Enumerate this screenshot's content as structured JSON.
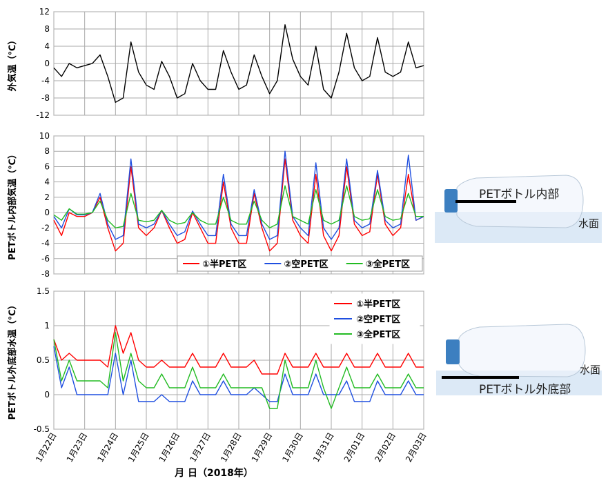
{
  "chart_data": {
    "type": "line",
    "xlabel": "月 日（2018年）",
    "x": [
      0,
      0.25,
      0.5,
      0.75,
      1,
      1.25,
      1.5,
      1.75,
      2,
      2.25,
      2.5,
      2.75,
      3,
      3.25,
      3.5,
      3.75,
      4,
      4.25,
      4.5,
      4.75,
      5,
      5.25,
      5.5,
      5.75,
      6,
      6.25,
      6.5,
      6.75,
      7,
      7.25,
      7.5,
      7.75,
      8,
      8.25,
      8.5,
      8.75,
      9,
      9.25,
      9.5,
      9.75,
      10,
      10.25,
      10.5,
      10.75,
      11,
      11.25,
      11.5,
      11.75,
      12
    ],
    "xlim": [
      0,
      12
    ],
    "xticks": [
      {
        "value": 0,
        "label": "1月22日"
      },
      {
        "value": 1,
        "label": "1月23日"
      },
      {
        "value": 2,
        "label": "1月24日"
      },
      {
        "value": 3,
        "label": "1月25日"
      },
      {
        "value": 4,
        "label": "1月26日"
      },
      {
        "value": 5,
        "label": "1月27日"
      },
      {
        "value": 6,
        "label": "1月28日"
      },
      {
        "value": 7,
        "label": "1月29日"
      },
      {
        "value": 8,
        "label": "1月30日"
      },
      {
        "value": 9,
        "label": "1月31日"
      },
      {
        "value": 10,
        "label": "2月01日"
      },
      {
        "value": 11,
        "label": "2月02日"
      },
      {
        "value": 12,
        "label": "2月03日"
      }
    ],
    "grid": true,
    "panels": [
      {
        "ylabel": "外気温（℃）",
        "ylabel_color": "#000000",
        "ylim": [
          -12,
          12
        ],
        "yticks": [
          -12,
          -8,
          -4,
          0,
          4,
          8,
          12
        ],
        "legend": null,
        "series": [
          {
            "name": null,
            "color": "#000000",
            "values": [
              -1,
              -3,
              0,
              -1,
              -0.5,
              0,
              2,
              -3,
              -9,
              -8,
              5,
              -2,
              -5,
              -6,
              0.5,
              -3,
              -8,
              -7,
              0,
              -4,
              -6,
              -6,
              3,
              -2,
              -6,
              -5,
              2,
              -3,
              -7,
              -4,
              9,
              1,
              -3,
              -5,
              4,
              -6,
              -8,
              -2,
              7,
              -1,
              -4,
              -3,
              6,
              -2,
              -3,
              -2,
              5,
              -1,
              -0.5
            ]
          }
        ]
      },
      {
        "ylabel": "PETボトル内部気温（℃）",
        "ylabel_color": "#000000",
        "ylim": [
          -8,
          10
        ],
        "yticks": [
          -8,
          -6,
          -4,
          -2,
          0,
          2,
          4,
          6,
          8,
          10
        ],
        "legend": "lower right",
        "series": [
          {
            "name": "①半PET区",
            "color": "#ff0000",
            "values": [
              -1,
              -3,
              0,
              -0.5,
              -0.5,
              0,
              2,
              -2,
              -5,
              -4,
              6,
              -2,
              -3,
              -2,
              0.3,
              -2,
              -4,
              -3.5,
              0,
              -2,
              -4,
              -4,
              4,
              -2,
              -4,
              -4,
              2.5,
              -2,
              -5,
              -4,
              7,
              -1,
              -3,
              -4,
              5,
              -3,
              -5,
              -3,
              6,
              -1.5,
              -3,
              -2.5,
              5,
              -1.5,
              -3,
              -2,
              5,
              -1,
              -0.5
            ]
          },
          {
            "name": "②空PET区",
            "color": "#1f4fe0",
            "values": [
              -0.5,
              -2,
              0.5,
              -0.3,
              -0.3,
              0,
              2.5,
              -1.5,
              -3.5,
              -3,
              7,
              -1.5,
              -2,
              -1.5,
              0.3,
              -1.5,
              -3,
              -2.5,
              0.2,
              -1.5,
              -3,
              -3,
              5,
              -1.5,
              -3,
              -3,
              3,
              -1.5,
              -3.5,
              -3,
              8,
              -0.5,
              -2,
              -3,
              6.5,
              -2,
              -3.5,
              -2,
              7,
              -1,
              -2,
              -1.5,
              5.5,
              -1,
              -2,
              -1.5,
              7.5,
              -1,
              -0.5
            ]
          },
          {
            "name": "③全PET区",
            "color": "#22bb22",
            "values": [
              -0.3,
              -1,
              0.5,
              -0.2,
              -0.2,
              0,
              1.5,
              -1,
              -2,
              -1.8,
              2.5,
              -1,
              -1.2,
              -1,
              0.3,
              -1,
              -1.5,
              -1.3,
              0,
              -1,
              -1.5,
              -1.5,
              2,
              -1,
              -1.5,
              -1.5,
              1.5,
              -1,
              -2,
              -1.5,
              3.5,
              -0.5,
              -1,
              -1.5,
              3,
              -1,
              -1.5,
              -1,
              3.5,
              -0.5,
              -1,
              -0.8,
              3,
              -0.5,
              -1,
              -0.8,
              2.5,
              -0.5,
              -0.5
            ]
          }
        ]
      },
      {
        "ylabel": "PETボトル外底部水温（℃）",
        "ylabel_color": "#ff0000",
        "ylim": [
          -0.5,
          1.5
        ],
        "yticks": [
          -0.5,
          0,
          0.5,
          1,
          1.5
        ],
        "legend": "upper right",
        "series": [
          {
            "name": "①半PET区",
            "color": "#ff0000",
            "values": [
              0.8,
              0.5,
              0.6,
              0.5,
              0.5,
              0.5,
              0.5,
              0.4,
              1.0,
              0.6,
              0.9,
              0.5,
              0.4,
              0.4,
              0.5,
              0.4,
              0.4,
              0.4,
              0.6,
              0.4,
              0.4,
              0.4,
              0.6,
              0.4,
              0.4,
              0.4,
              0.5,
              0.3,
              0.3,
              0.3,
              0.6,
              0.4,
              0.4,
              0.4,
              0.6,
              0.4,
              0.4,
              0.4,
              0.6,
              0.4,
              0.4,
              0.4,
              0.6,
              0.4,
              0.4,
              0.4,
              0.6,
              0.4,
              0.4
            ]
          },
          {
            "name": "②空PET区",
            "color": "#1f4fe0",
            "values": [
              0.7,
              0.1,
              0.4,
              0,
              0,
              0,
              0,
              0,
              0.6,
              0,
              0.5,
              -0.1,
              -0.1,
              -0.1,
              0,
              -0.1,
              -0.1,
              -0.1,
              0.2,
              0,
              0,
              0,
              0.2,
              0,
              0,
              0,
              0.1,
              0,
              -0.1,
              -0.1,
              0.3,
              0,
              0,
              0,
              0.3,
              0,
              0,
              0,
              0.2,
              -0.1,
              -0.1,
              -0.1,
              0.2,
              0,
              0,
              0,
              0.2,
              0,
              0
            ]
          },
          {
            "name": "③全PET区",
            "color": "#22bb22",
            "values": [
              0.8,
              0.2,
              0.5,
              0.2,
              0.2,
              0.2,
              0.2,
              0.1,
              0.9,
              0.2,
              0.6,
              0.2,
              0.1,
              0.1,
              0.3,
              0.1,
              0.1,
              0.1,
              0.4,
              0.1,
              0.1,
              0.1,
              0.3,
              0.1,
              0.1,
              0.1,
              0.1,
              0.1,
              -0.2,
              -0.2,
              0.5,
              0.1,
              0.1,
              0.1,
              0.5,
              0.1,
              -0.2,
              0.1,
              0.4,
              0.1,
              0.1,
              0.1,
              0.3,
              0.1,
              0.1,
              0.1,
              0.3,
              0.1,
              0.1
            ]
          }
        ]
      }
    ]
  },
  "diagram": {
    "upper": {
      "label": "PETボトル内部",
      "water": "水面"
    },
    "lower": {
      "label": "PETボトル外底部",
      "water": "水面"
    }
  }
}
